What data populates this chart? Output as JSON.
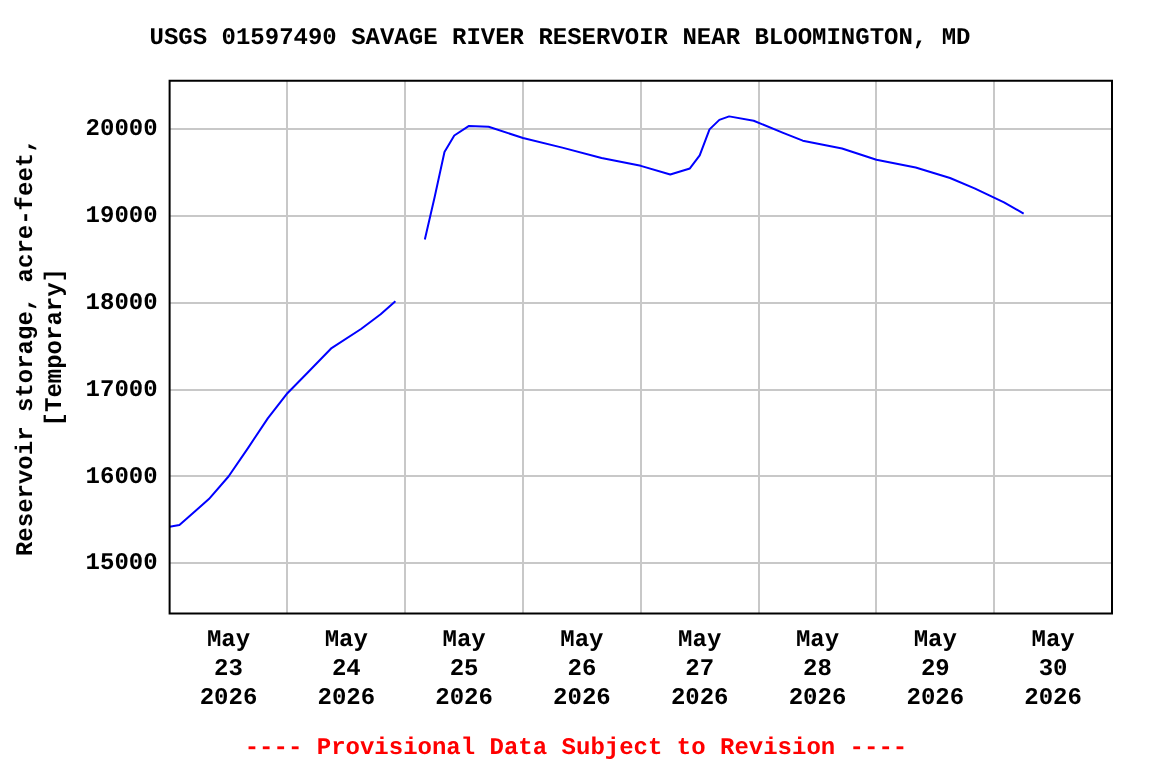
{
  "chart_data": {
    "type": "line",
    "title": "USGS 01597490 SAVAGE RIVER RESERVOIR NEAR BLOOMINGTON, MD",
    "ylabel": "Reservoir storage, acre-feet, [Temporary]",
    "annotations": [
      "---- Provisional Data Subject to Revision ----"
    ],
    "x": [
      "2026-05-23T00:00",
      "2026-05-23T02:00",
      "2026-05-23T08:00",
      "2026-05-23T12:00",
      "2026-05-23T16:00",
      "2026-05-23T20:00",
      "2026-05-24T00:00",
      "2026-05-24T04:00",
      "2026-05-24T09:00",
      "2026-05-24T15:00",
      "2026-05-24T19:00",
      "2026-05-24T22:00",
      "2026-05-25T01:00",
      "2026-05-25T04:00",
      "2026-05-25T06:00",
      "2026-05-25T08:00",
      "2026-05-25T10:00",
      "2026-05-25T13:00",
      "2026-05-25T17:00",
      "2026-05-26T00:00",
      "2026-05-26T08:00",
      "2026-05-26T16:00",
      "2026-05-27T00:00",
      "2026-05-27T06:00",
      "2026-05-27T10:00",
      "2026-05-27T12:00",
      "2026-05-27T14:00",
      "2026-05-27T16:00",
      "2026-05-27T18:00",
      "2026-05-27T23:00",
      "2026-05-28T05:00",
      "2026-05-28T09:00",
      "2026-05-28T17:00",
      "2026-05-29T00:00",
      "2026-05-29T08:00",
      "2026-05-29T15:00",
      "2026-05-29T20:00",
      "2026-05-30T02:00",
      "2026-05-30T06:00"
    ],
    "series": [
      {
        "color": "#0000ff",
        "values": [
          15420,
          15440,
          15740,
          16000,
          16330,
          16670,
          16960,
          17190,
          17480,
          17700,
          17870,
          18020,
          null,
          18730,
          19220,
          19740,
          19930,
          20040,
          20030,
          19900,
          19790,
          19670,
          19580,
          19480,
          19550,
          19700,
          20000,
          20110,
          20150,
          20100,
          19960,
          19870,
          19780,
          19650,
          19560,
          19440,
          19320,
          19160,
          19030
        ]
      }
    ],
    "xlim": [
      "2026-05-23T00:00",
      "2026-05-31T00:00"
    ],
    "xticks": [
      {
        "value": "2026-05-23T12:00",
        "label": "May 23 2026"
      },
      {
        "value": "2026-05-24T00:00",
        "label": null
      },
      {
        "value": "2026-05-24T12:00",
        "label": "May 24 2026"
      },
      {
        "value": "2026-05-25T00:00",
        "label": null
      },
      {
        "value": "2026-05-25T12:00",
        "label": "May 25 2026"
      },
      {
        "value": "2026-05-26T00:00",
        "label": null
      },
      {
        "value": "2026-05-26T12:00",
        "label": "May 26 2026"
      },
      {
        "value": "2026-05-27T00:00",
        "label": null
      },
      {
        "value": "2026-05-27T12:00",
        "label": "May 27 2026"
      },
      {
        "value": "2026-05-28T00:00",
        "label": null
      },
      {
        "value": "2026-05-28T12:00",
        "label": "May 28 2026"
      },
      {
        "value": "2026-05-29T00:00",
        "label": null
      },
      {
        "value": "2026-05-29T12:00",
        "label": "May 29 2026"
      },
      {
        "value": "2026-05-30T00:00",
        "label": null
      },
      {
        "value": "2026-05-30T12:00",
        "label": "May 30 2026"
      }
    ],
    "ylim": [
      14420,
      20560
    ],
    "yticks": [
      15000,
      16000,
      17000,
      18000,
      19000,
      20000
    ],
    "grid": true
  }
}
